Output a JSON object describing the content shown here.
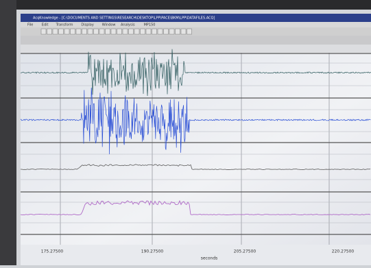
{
  "window": {
    "title": "AcqKnowledge - [C:\\DOCUMENTS AND SETTINGS\\RESEARCH\\DESKTOP\\LPP\\PACE\\BKM\\LPP\\DATAFILES.ACQ]",
    "menu": [
      "File",
      "Edit",
      "Transform",
      "Display",
      "Window",
      "Analysis",
      "MP150"
    ]
  },
  "x_axis": {
    "ticks": [
      "175.27500",
      "190.27500",
      "205.27500",
      "220.27500"
    ],
    "label": "seconds"
  }
}
